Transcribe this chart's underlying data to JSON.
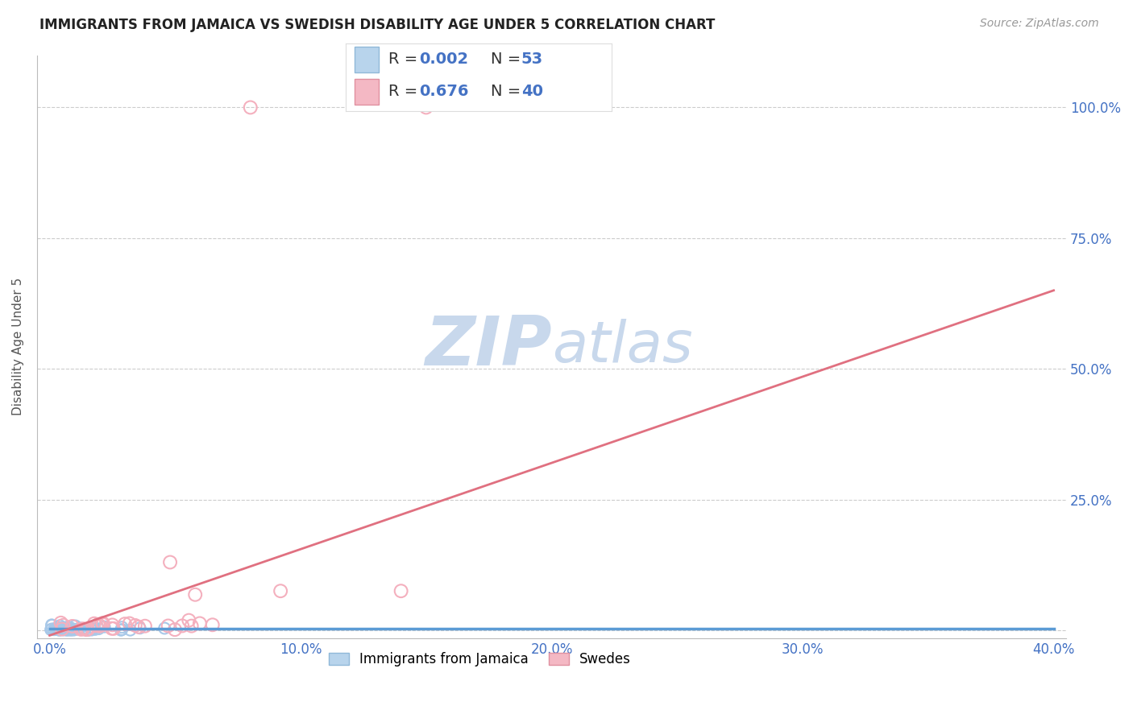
{
  "title": "IMMIGRANTS FROM JAMAICA VS SWEDISH DISABILITY AGE UNDER 5 CORRELATION CHART",
  "source": "Source: ZipAtlas.com",
  "ylabel": "Disability Age Under 5",
  "series0_label": "Immigrants from Jamaica",
  "series0_R": "0.002",
  "series0_N": "53",
  "series0_marker_color": "#a8c8e8",
  "series0_line_color": "#5b9bd5",
  "series1_label": "Swedes",
  "series1_R": "0.676",
  "series1_N": "40",
  "series1_marker_color": "#f4b0be",
  "series1_line_color": "#e07080",
  "xlim": [
    -0.005,
    0.405
  ],
  "ylim": [
    -0.015,
    1.1
  ],
  "yticks": [
    0.0,
    0.25,
    0.5,
    0.75,
    1.0
  ],
  "ytick_labels": [
    "",
    "25.0%",
    "50.0%",
    "75.0%",
    "100.0%"
  ],
  "xticks": [
    0.0,
    0.1,
    0.2,
    0.3,
    0.4
  ],
  "xtick_labels": [
    "0.0%",
    "10.0%",
    "20.0%",
    "30.0%",
    "40.0%"
  ],
  "grid_color": "#cccccc",
  "bg_color": "#ffffff",
  "title_color": "#222222",
  "tick_label_color": "#4472c4",
  "watermark_color": "#dce8f5",
  "legend_r_color": "#4472c4",
  "legend_n_color": "#4472c4"
}
